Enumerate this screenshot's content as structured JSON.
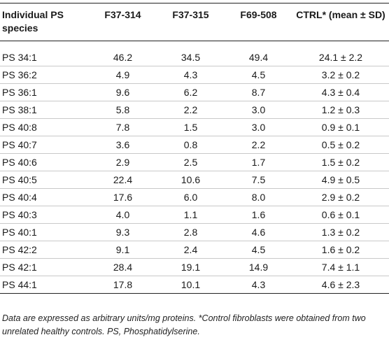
{
  "table": {
    "headers": [
      "Individual PS species",
      "F37-314",
      "F37-315",
      "F69-508",
      "CTRL* (mean ± SD)"
    ],
    "rows": [
      [
        "PS 34:1",
        "46.2",
        "34.5",
        "49.4",
        "24.1 ± 2.2"
      ],
      [
        "PS 36:2",
        "4.9",
        "4.3",
        "4.5",
        "3.2 ± 0.2"
      ],
      [
        "PS 36:1",
        "9.6",
        "6.2",
        "8.7",
        "4.3 ± 0.4"
      ],
      [
        "PS 38:1",
        "5.8",
        "2.2",
        "3.0",
        "1.2 ± 0.3"
      ],
      [
        "PS 40:8",
        "7.8",
        "1.5",
        "3.0",
        "0.9 ± 0.1"
      ],
      [
        "PS 40:7",
        "3.6",
        "0.8",
        "2.2",
        "0.5 ± 0.2"
      ],
      [
        "PS 40:6",
        "2.9",
        "2.5",
        "1.7",
        "1.5 ± 0.2"
      ],
      [
        "PS 40:5",
        "22.4",
        "10.6",
        "7.5",
        "4.9 ± 0.5"
      ],
      [
        "PS 40:4",
        "17.6",
        "6.0",
        "8.0",
        "2.9 ± 0.2"
      ],
      [
        "PS 40:3",
        "4.0",
        "1.1",
        "1.6",
        "0.6 ± 0.1"
      ],
      [
        "PS 40:1",
        "9.3",
        "2.8",
        "4.6",
        "1.3 ± 0.2"
      ],
      [
        "PS 42:2",
        "9.1",
        "2.4",
        "4.5",
        "1.6 ± 0.2"
      ],
      [
        "PS 42:1",
        "28.4",
        "19.1",
        "14.9",
        "7.4 ± 1.1"
      ],
      [
        "PS 44:1",
        "17.8",
        "10.1",
        "4.3",
        "4.6 ± 2.3"
      ]
    ]
  },
  "footnote": "Data are expressed as arbitrary units/mg proteins. *Control fibroblasts were obtained from two unrelated healthy controls. PS, Phosphatidylserine."
}
